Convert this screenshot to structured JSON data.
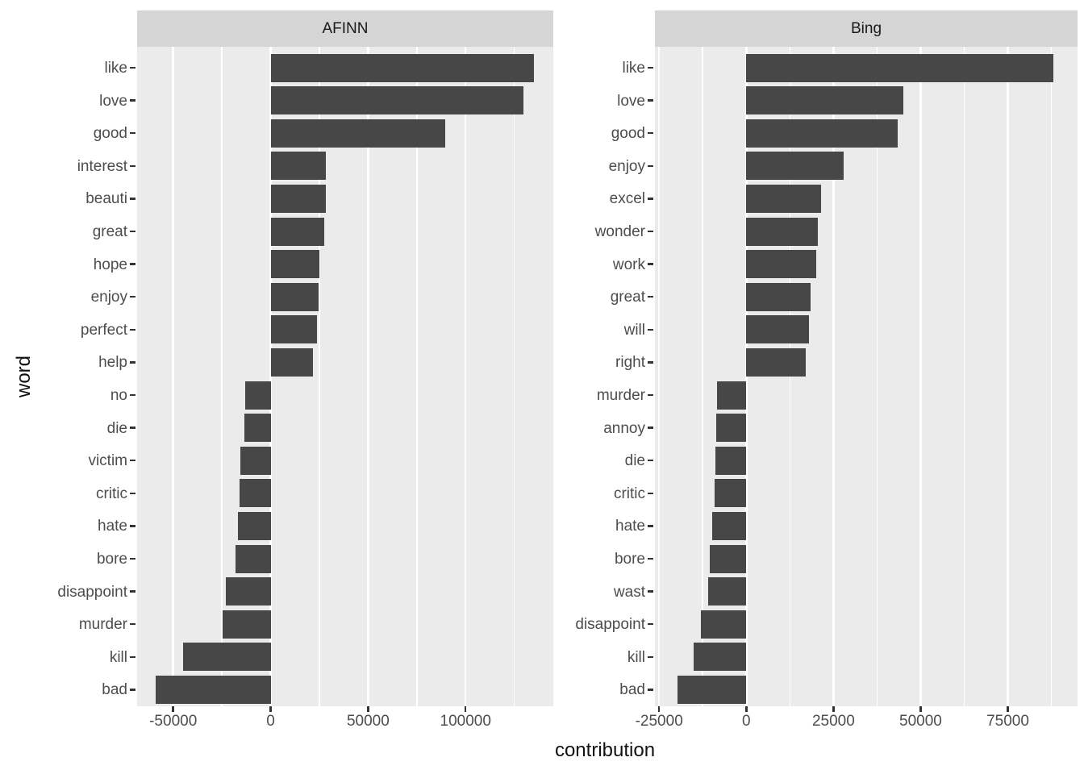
{
  "chart_data": {
    "type": "bar",
    "orientation": "horizontal",
    "xlabel": "contribution",
    "ylabel": "word",
    "grid": true,
    "legend": "none",
    "bar_color": "#474747",
    "panel_bg": "#EBEBEB",
    "strip_bg": "#D5D5D5",
    "grid_color": "#FFFFFF",
    "axis_text_color": "#4d4d4d",
    "facets": [
      {
        "name": "AFINN",
        "xlim": [
          -68500,
          145000
        ],
        "x_major_ticks": [
          -50000,
          0,
          50000,
          100000
        ],
        "x_tick_labels": [
          "-50000",
          "0",
          "50000",
          "100000"
        ],
        "x_minor_gridlines": [
          -25000,
          25000,
          75000,
          125000
        ],
        "categories": [
          "like",
          "love",
          "good",
          "interest",
          "beauti",
          "great",
          "hope",
          "enjoy",
          "perfect",
          "help",
          "no",
          "die",
          "victim",
          "critic",
          "hate",
          "bore",
          "disappoint",
          "murder",
          "kill",
          "bad"
        ],
        "values": [
          135000,
          129500,
          89500,
          28500,
          28200,
          27700,
          25100,
          24600,
          23800,
          21800,
          -13000,
          -13400,
          -15500,
          -15800,
          -16600,
          -18000,
          -22900,
          -24800,
          -45000,
          -59000
        ]
      },
      {
        "name": "Bing",
        "xlim": [
          -26200,
          95000
        ],
        "x_major_ticks": [
          -25000,
          0,
          25000,
          50000,
          75000
        ],
        "x_tick_labels": [
          "-25000",
          "0",
          "25000",
          "50000",
          "75000"
        ],
        "x_minor_gridlines": [
          -12500,
          12500,
          37500,
          62500,
          87500
        ],
        "categories": [
          "like",
          "love",
          "good",
          "enjoy",
          "excel",
          "wonder",
          "work",
          "great",
          "will",
          "right",
          "murder",
          "annoy",
          "die",
          "critic",
          "hate",
          "bore",
          "wast",
          "disappoint",
          "kill",
          "bad"
        ],
        "values": [
          88000,
          45000,
          43500,
          28000,
          21500,
          20500,
          20000,
          18500,
          18000,
          17000,
          -8500,
          -8700,
          -8800,
          -9000,
          -9800,
          -10500,
          -11000,
          -13000,
          -15000,
          -19800
        ]
      }
    ]
  }
}
